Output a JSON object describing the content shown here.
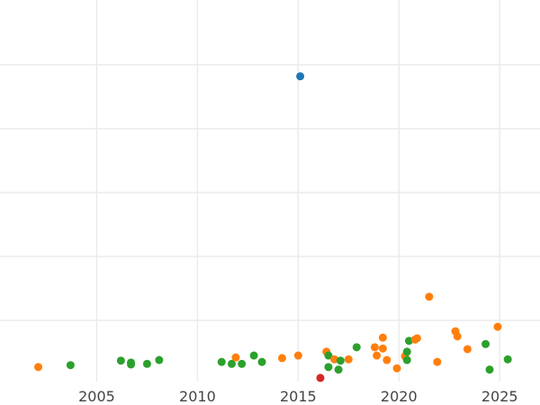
{
  "chart_data": {
    "type": "scatter",
    "title": "",
    "xlabel": "",
    "ylabel": "",
    "xlim": [
      2000.2,
      2027.0
    ],
    "ylim": [
      0,
      6
    ],
    "x_ticks": [
      "2005",
      "2010",
      "2015",
      "2020",
      "2025"
    ],
    "y_gridlines": [
      1,
      2,
      3,
      4,
      5
    ],
    "grid": true,
    "colors": {
      "blue": "#1f77b4",
      "orange": "#ff7f0e",
      "green": "#2ca02c",
      "red": "#d62728"
    },
    "points": [
      {
        "x": 2002.1,
        "y": 0.27,
        "c": "orange"
      },
      {
        "x": 2003.7,
        "y": 0.3,
        "c": "green"
      },
      {
        "x": 2006.2,
        "y": 0.37,
        "c": "green"
      },
      {
        "x": 2006.7,
        "y": 0.34,
        "c": "green"
      },
      {
        "x": 2006.7,
        "y": 0.31,
        "c": "green"
      },
      {
        "x": 2007.5,
        "y": 0.32,
        "c": "green"
      },
      {
        "x": 2008.1,
        "y": 0.38,
        "c": "green"
      },
      {
        "x": 2011.2,
        "y": 0.35,
        "c": "green"
      },
      {
        "x": 2011.7,
        "y": 0.32,
        "c": "green"
      },
      {
        "x": 2011.9,
        "y": 0.42,
        "c": "orange"
      },
      {
        "x": 2012.2,
        "y": 0.32,
        "c": "green"
      },
      {
        "x": 2012.8,
        "y": 0.45,
        "c": "green"
      },
      {
        "x": 2013.2,
        "y": 0.35,
        "c": "green"
      },
      {
        "x": 2014.2,
        "y": 0.41,
        "c": "orange"
      },
      {
        "x": 2015.0,
        "y": 0.45,
        "c": "orange"
      },
      {
        "x": 2015.1,
        "y": 4.82,
        "c": "blue"
      },
      {
        "x": 2016.1,
        "y": 0.1,
        "c": "red"
      },
      {
        "x": 2016.4,
        "y": 0.51,
        "c": "orange"
      },
      {
        "x": 2016.5,
        "y": 0.45,
        "c": "green"
      },
      {
        "x": 2016.5,
        "y": 0.27,
        "c": "green"
      },
      {
        "x": 2016.8,
        "y": 0.39,
        "c": "orange"
      },
      {
        "x": 2017.0,
        "y": 0.23,
        "c": "green"
      },
      {
        "x": 2017.1,
        "y": 0.37,
        "c": "green"
      },
      {
        "x": 2017.5,
        "y": 0.39,
        "c": "orange"
      },
      {
        "x": 2017.9,
        "y": 0.58,
        "c": "green"
      },
      {
        "x": 2018.8,
        "y": 0.58,
        "c": "orange"
      },
      {
        "x": 2018.9,
        "y": 0.45,
        "c": "orange"
      },
      {
        "x": 2019.2,
        "y": 0.73,
        "c": "orange"
      },
      {
        "x": 2019.2,
        "y": 0.56,
        "c": "orange"
      },
      {
        "x": 2019.4,
        "y": 0.38,
        "c": "orange"
      },
      {
        "x": 2019.9,
        "y": 0.25,
        "c": "orange"
      },
      {
        "x": 2020.3,
        "y": 0.44,
        "c": "orange"
      },
      {
        "x": 2020.4,
        "y": 0.51,
        "c": "green"
      },
      {
        "x": 2020.4,
        "y": 0.38,
        "c": "green"
      },
      {
        "x": 2020.5,
        "y": 0.68,
        "c": "green"
      },
      {
        "x": 2020.8,
        "y": 0.7,
        "c": "orange"
      },
      {
        "x": 2020.9,
        "y": 0.72,
        "c": "orange"
      },
      {
        "x": 2021.5,
        "y": 1.37,
        "c": "orange"
      },
      {
        "x": 2021.9,
        "y": 0.35,
        "c": "orange"
      },
      {
        "x": 2022.8,
        "y": 0.83,
        "c": "orange"
      },
      {
        "x": 2022.9,
        "y": 0.75,
        "c": "orange"
      },
      {
        "x": 2023.4,
        "y": 0.55,
        "c": "orange"
      },
      {
        "x": 2024.3,
        "y": 0.63,
        "c": "green"
      },
      {
        "x": 2024.5,
        "y": 0.23,
        "c": "green"
      },
      {
        "x": 2024.9,
        "y": 0.9,
        "c": "orange"
      },
      {
        "x": 2025.4,
        "y": 0.39,
        "c": "green"
      }
    ]
  }
}
